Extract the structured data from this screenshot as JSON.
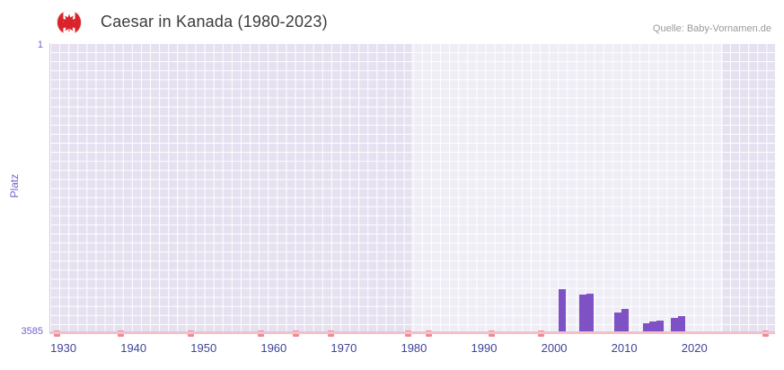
{
  "header": {
    "title": "Caesar in Kanada (1980-2023)",
    "source": "Quelle: Baby-Vornamen.de",
    "flag_icon": "canada-flag-icon"
  },
  "chart_data": {
    "type": "bar",
    "title": "Caesar in Kanada (1980-2023)",
    "xlabel": "",
    "ylabel": "Platz",
    "y_axis": {
      "top_label": "1",
      "bottom_label": "3585",
      "min": 1,
      "max": 3585,
      "inverted": true
    },
    "x_axis": {
      "ticks": [
        1930,
        1940,
        1950,
        1960,
        1970,
        1980,
        1990,
        2000,
        2010,
        2020
      ],
      "min": 1928,
      "max": 2031.5
    },
    "highlight_band": {
      "from": 1979.5,
      "to": 2024,
      "color": "rgba(255,255,255,0.4)",
      "meaning": "range 1980-2023"
    },
    "grid": "on",
    "legend": "none",
    "series": [
      {
        "name": "Platz",
        "points": [
          {
            "year": 2001,
            "rank": 3050
          },
          {
            "year": 2004,
            "rank": 3115
          },
          {
            "year": 2005,
            "rank": 3110
          },
          {
            "year": 2009,
            "rank": 3340
          },
          {
            "year": 2010,
            "rank": 3300
          },
          {
            "year": 2013,
            "rank": 3470
          },
          {
            "year": 2014,
            "rank": 3450
          },
          {
            "year": 2015,
            "rank": 3435
          },
          {
            "year": 2017,
            "rank": 3410
          },
          {
            "year": 2018,
            "rank": 3385
          }
        ]
      }
    ],
    "unranked_year_markers": [
      1929,
      1938,
      1948,
      1958,
      1963,
      1968,
      1979,
      1982,
      1991,
      1998,
      2030
    ],
    "colors": {
      "bar": "#7e52c5",
      "plot_bg": "#e5e1f0",
      "grid": "#ffffff",
      "x_tick_label": "#3f4499",
      "y_tick_label": "#7a5fd0",
      "marker": "#ef8a93",
      "baseline": "#f3bfc9",
      "title": "#3c3c3c",
      "source": "#9a9a9a"
    }
  }
}
